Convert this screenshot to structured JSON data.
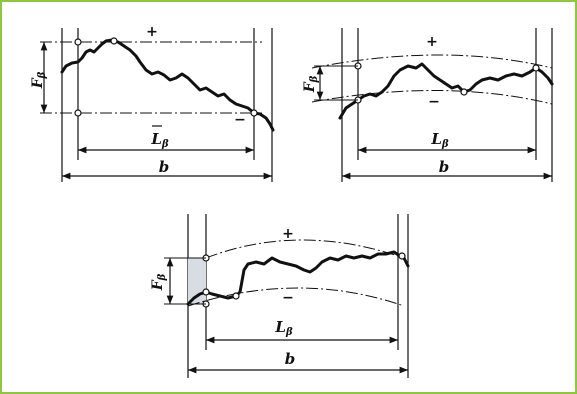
{
  "border_color": "#8dc63f",
  "diagrams": [
    {
      "f_label": "F",
      "f_sub": "β",
      "l_label": "L",
      "l_sub": "β",
      "b_label": "b",
      "plus_sign": "+",
      "minus_sign": "−"
    },
    {
      "f_label": "F",
      "f_sub": "β",
      "l_label": "L",
      "l_sub": "β",
      "b_label": "b",
      "plus_sign": "+",
      "minus_sign": "−"
    },
    {
      "f_label": "F",
      "f_sub": "β",
      "l_label": "L",
      "l_sub": "β",
      "b_label": "b",
      "plus_sign": "+",
      "minus_sign": "−"
    }
  ]
}
